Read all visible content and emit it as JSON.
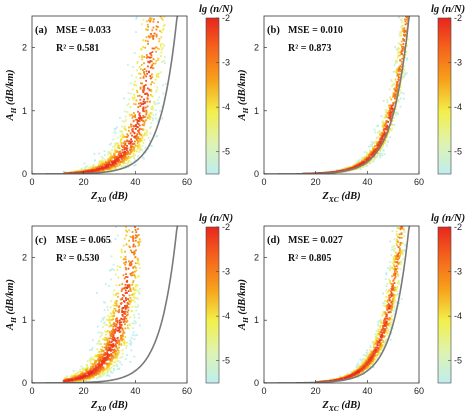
{
  "chart_data": [
    {
      "type": "scatter",
      "panel_label": "(a)",
      "mse_text": "MSE = 0.033",
      "r2_text": "R² = 0.581",
      "xlabel_main": "Z",
      "xlabel_sub": "X0",
      "xlabel_unit": "(dB)",
      "ylabel_main": "A",
      "ylabel_sub": "H",
      "ylabel_unit": "(dB/km)",
      "xlim": [
        0,
        60
      ],
      "ylim": [
        0,
        2.5
      ],
      "xticks": [
        "0",
        "20",
        "40",
        "60"
      ],
      "yticks": [
        "0",
        "1",
        "2"
      ],
      "density": {
        "x_range": [
          12,
          52
        ],
        "shape": "broad",
        "center_offset": 8
      },
      "colorbar": {
        "title": "lg (n/N)",
        "range": [
          -5.5,
          -2
        ],
        "ticks": [
          "-2",
          "-3",
          "-4",
          "-5"
        ]
      },
      "fit_curve": "steep"
    },
    {
      "type": "scatter",
      "panel_label": "(b)",
      "mse_text": "MSE = 0.010",
      "r2_text": "R² = 0.873",
      "xlabel_main": "Z",
      "xlabel_sub": "XC",
      "xlabel_unit": "(dB)",
      "ylabel_main": "A",
      "ylabel_sub": "H",
      "ylabel_unit": "(dB/km)",
      "xlim": [
        0,
        60
      ],
      "ylim": [
        0,
        2.5
      ],
      "xticks": [
        "0",
        "20",
        "40",
        "60"
      ],
      "yticks": [
        "0",
        "1",
        "2"
      ],
      "density": {
        "x_range": [
          15,
          56
        ],
        "shape": "narrow",
        "center_offset": 1
      },
      "colorbar": {
        "title": "lg (n/N)",
        "range": [
          -5.5,
          -2
        ],
        "ticks": [
          "-2",
          "-3",
          "-4",
          "-5"
        ]
      },
      "fit_curve": "steep"
    },
    {
      "type": "scatter",
      "panel_label": "(c)",
      "mse_text": "MSE = 0.065",
      "r2_text": "R² = 0.530",
      "xlabel_main": "Z",
      "xlabel_sub": "X0",
      "xlabel_unit": "(dB)",
      "ylabel_main": "A",
      "ylabel_sub": "H",
      "ylabel_unit": "(dB/km)",
      "xlim": [
        0,
        60
      ],
      "ylim": [
        0,
        2.5
      ],
      "xticks": [
        "0",
        "20",
        "40",
        "60"
      ],
      "yticks": [
        "0",
        "1",
        "2"
      ],
      "density": {
        "x_range": [
          12,
          42
        ],
        "shape": "broad-shifted",
        "center_offset": 16
      },
      "colorbar": {
        "title": "lg (n/N)",
        "range": [
          -5.5,
          -2
        ],
        "ticks": [
          "-2",
          "-3",
          "-4",
          "-5"
        ]
      },
      "fit_curve": "steep"
    },
    {
      "type": "scatter",
      "panel_label": "(d)",
      "mse_text": "MSE = 0.027",
      "r2_text": "R² = 0.805",
      "xlabel_main": "Z",
      "xlabel_sub": "XC",
      "xlabel_unit": "(dB)",
      "ylabel_main": "A",
      "ylabel_sub": "H",
      "ylabel_unit": "(dB/km)",
      "xlim": [
        0,
        60
      ],
      "ylim": [
        0,
        2.5
      ],
      "xticks": [
        "0",
        "20",
        "40",
        "60"
      ],
      "yticks": [
        "0",
        "1",
        "2"
      ],
      "density": {
        "x_range": [
          20,
          55
        ],
        "shape": "narrow",
        "center_offset": 3
      },
      "colorbar": {
        "title": "lg (n/N)",
        "range": [
          -5.5,
          -2
        ],
        "ticks": [
          "-2",
          "-3",
          "-4",
          "-5"
        ]
      },
      "fit_curve": "steep"
    }
  ],
  "colors": {
    "high": "#e8261e",
    "mid": "#f7a21b",
    "low": "#f2ef4a",
    "lowest": "#bfeef0",
    "curve": "#7a7a7a"
  }
}
